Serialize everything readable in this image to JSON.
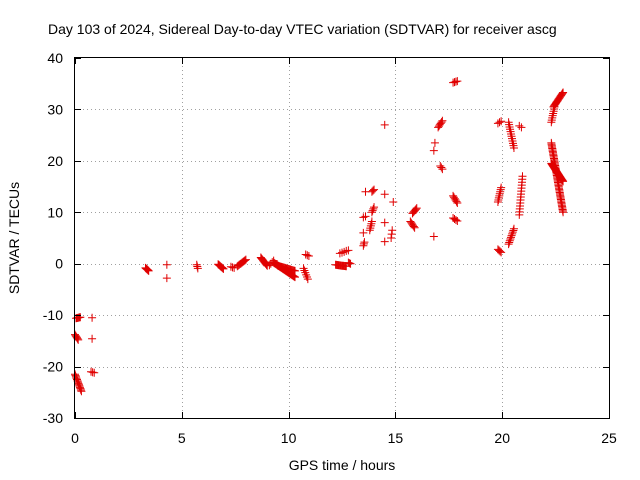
{
  "chart_data": {
    "type": "scatter",
    "title": "Day 103 of 2024, Sidereal Day-to-day VTEC variation (SDTVAR) for receiver ascg",
    "xlabel": "GPS time / hours",
    "ylabel": "SDTVAR / TECUs",
    "xlim": [
      0,
      25
    ],
    "ylim": [
      -30,
      40
    ],
    "xticks": [
      0,
      5,
      10,
      15,
      20,
      25
    ],
    "yticks": [
      -30,
      -20,
      -10,
      0,
      10,
      20,
      30,
      40
    ],
    "grid": true,
    "marker": "+",
    "color": "#e00000",
    "segments": [
      {
        "x0": 0.05,
        "y0": -10.6,
        "x1": 0.25,
        "y1": -10.4,
        "n": 6
      },
      {
        "x0": 0.0,
        "y0": -13.8,
        "x1": 0.15,
        "y1": -14.8,
        "n": 6
      },
      {
        "x0": 0.0,
        "y0": -21.5,
        "x1": 0.3,
        "y1": -24.8,
        "n": 14
      },
      {
        "x0": 0.8,
        "y0": -10.5,
        "x1": 0.8,
        "y1": -10.5,
        "n": 1
      },
      {
        "x0": 0.8,
        "y0": -14.6,
        "x1": 0.8,
        "y1": -14.6,
        "n": 1
      },
      {
        "x0": 0.75,
        "y0": -21.0,
        "x1": 0.9,
        "y1": -21.2,
        "n": 3
      },
      {
        "x0": 3.3,
        "y0": -0.8,
        "x1": 3.45,
        "y1": -1.4,
        "n": 6
      },
      {
        "x0": 4.3,
        "y0": -0.2,
        "x1": 4.3,
        "y1": -0.2,
        "n": 1
      },
      {
        "x0": 4.3,
        "y0": -2.8,
        "x1": 4.3,
        "y1": -2.8,
        "n": 1
      },
      {
        "x0": 5.7,
        "y0": -0.2,
        "x1": 5.75,
        "y1": -0.9,
        "n": 3
      },
      {
        "x0": 6.7,
        "y0": -0.1,
        "x1": 6.95,
        "y1": -1.0,
        "n": 8
      },
      {
        "x0": 7.3,
        "y0": -0.6,
        "x1": 7.45,
        "y1": -0.8,
        "n": 3
      },
      {
        "x0": 7.6,
        "y0": -0.5,
        "x1": 8.0,
        "y1": 0.8,
        "n": 10
      },
      {
        "x0": 8.7,
        "y0": 1.2,
        "x1": 9.0,
        "y1": -0.4,
        "n": 10
      },
      {
        "x0": 9.1,
        "y0": -0.3,
        "x1": 9.3,
        "y1": 0.6,
        "n": 4
      },
      {
        "x0": 9.3,
        "y0": 0.2,
        "x1": 10.3,
        "y1": -2.6,
        "n": 30
      },
      {
        "x0": 9.5,
        "y0": -0.4,
        "x1": 10.3,
        "y1": -1.4,
        "n": 20
      },
      {
        "x0": 10.7,
        "y0": -0.9,
        "x1": 10.9,
        "y1": -3.0,
        "n": 6
      },
      {
        "x0": 10.8,
        "y0": 1.8,
        "x1": 10.95,
        "y1": 1.5,
        "n": 3
      },
      {
        "x0": 12.2,
        "y0": -0.2,
        "x1": 12.7,
        "y1": -0.5,
        "n": 14
      },
      {
        "x0": 12.8,
        "y0": 0.2,
        "x1": 12.9,
        "y1": 0.0,
        "n": 3
      },
      {
        "x0": 12.4,
        "y0": 2.0,
        "x1": 12.6,
        "y1": 2.3,
        "n": 3
      },
      {
        "x0": 12.7,
        "y0": 2.5,
        "x1": 12.8,
        "y1": 2.6,
        "n": 2
      },
      {
        "x0": 13.5,
        "y0": 3.5,
        "x1": 13.55,
        "y1": 4.2,
        "n": 3
      },
      {
        "x0": 13.5,
        "y0": 6.0,
        "x1": 13.5,
        "y1": 6.0,
        "n": 1
      },
      {
        "x0": 13.5,
        "y0": 9.0,
        "x1": 13.6,
        "y1": 9.2,
        "n": 2
      },
      {
        "x0": 13.6,
        "y0": 14.0,
        "x1": 13.6,
        "y1": 14.0,
        "n": 1
      },
      {
        "x0": 13.8,
        "y0": 6.5,
        "x1": 13.9,
        "y1": 8.2,
        "n": 5
      },
      {
        "x0": 13.9,
        "y0": 10.0,
        "x1": 14.0,
        "y1": 11.0,
        "n": 4
      },
      {
        "x0": 13.9,
        "y0": 14.0,
        "x1": 14.0,
        "y1": 14.4,
        "n": 3
      },
      {
        "x0": 14.5,
        "y0": 27.0,
        "x1": 14.5,
        "y1": 27.0,
        "n": 1
      },
      {
        "x0": 14.5,
        "y0": 13.5,
        "x1": 14.5,
        "y1": 13.5,
        "n": 1
      },
      {
        "x0": 14.5,
        "y0": 8.0,
        "x1": 14.5,
        "y1": 8.0,
        "n": 1
      },
      {
        "x0": 14.5,
        "y0": 4.3,
        "x1": 14.5,
        "y1": 4.3,
        "n": 1
      },
      {
        "x0": 14.8,
        "y0": 5.0,
        "x1": 14.85,
        "y1": 6.5,
        "n": 3
      },
      {
        "x0": 14.9,
        "y0": 12.0,
        "x1": 14.9,
        "y1": 12.0,
        "n": 1
      },
      {
        "x0": 15.7,
        "y0": 8.2,
        "x1": 15.9,
        "y1": 7.0,
        "n": 6
      },
      {
        "x0": 15.8,
        "y0": 9.8,
        "x1": 16.0,
        "y1": 10.8,
        "n": 6
      },
      {
        "x0": 16.8,
        "y0": 22.0,
        "x1": 16.85,
        "y1": 23.5,
        "n": 2
      },
      {
        "x0": 16.8,
        "y0": 5.3,
        "x1": 16.8,
        "y1": 5.3,
        "n": 1
      },
      {
        "x0": 17.0,
        "y0": 26.5,
        "x1": 17.2,
        "y1": 27.8,
        "n": 6
      },
      {
        "x0": 17.1,
        "y0": 19.0,
        "x1": 17.2,
        "y1": 18.4,
        "n": 3
      },
      {
        "x0": 17.7,
        "y0": 35.2,
        "x1": 17.9,
        "y1": 35.5,
        "n": 4
      },
      {
        "x0": 17.7,
        "y0": 13.2,
        "x1": 17.9,
        "y1": 11.8,
        "n": 6
      },
      {
        "x0": 17.7,
        "y0": 8.9,
        "x1": 17.9,
        "y1": 8.3,
        "n": 4
      },
      {
        "x0": 19.8,
        "y0": 27.3,
        "x1": 19.95,
        "y1": 27.7,
        "n": 3
      },
      {
        "x0": 19.8,
        "y0": 12.0,
        "x1": 19.95,
        "y1": 14.8,
        "n": 8
      },
      {
        "x0": 19.8,
        "y0": 2.8,
        "x1": 19.95,
        "y1": 2.2,
        "n": 4
      },
      {
        "x0": 20.3,
        "y0": 27.5,
        "x1": 20.55,
        "y1": 22.5,
        "n": 12
      },
      {
        "x0": 20.3,
        "y0": 3.8,
        "x1": 20.55,
        "y1": 6.8,
        "n": 10
      },
      {
        "x0": 20.8,
        "y0": 26.8,
        "x1": 20.9,
        "y1": 26.5,
        "n": 2
      },
      {
        "x0": 20.8,
        "y0": 9.5,
        "x1": 20.95,
        "y1": 17.0,
        "n": 14
      },
      {
        "x0": 22.3,
        "y0": 23.5,
        "x1": 22.85,
        "y1": 10.0,
        "n": 50
      },
      {
        "x0": 22.3,
        "y0": 19.5,
        "x1": 22.85,
        "y1": 16.0,
        "n": 30
      },
      {
        "x0": 22.3,
        "y0": 27.5,
        "x1": 22.45,
        "y1": 30.5,
        "n": 8
      },
      {
        "x0": 22.4,
        "y0": 30.5,
        "x1": 22.85,
        "y1": 33.3,
        "n": 16
      }
    ]
  }
}
